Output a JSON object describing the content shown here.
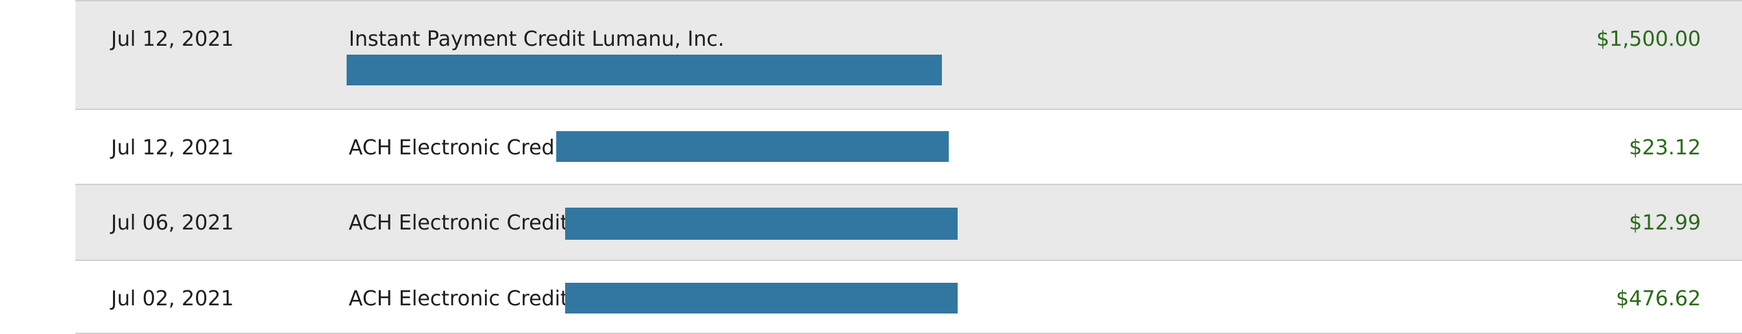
{
  "transactions": [
    {
      "date": "Jul 12, 2021",
      "description": "Instant Payment Credit Lumanu, Inc.",
      "amount": "$1,500.00"
    },
    {
      "date": "Jul 12, 2021",
      "description": "ACH Electronic Credit",
      "amount": "$23.12"
    },
    {
      "date": "Jul 06, 2021",
      "description": "ACH Electronic Credit",
      "amount": "$12.99"
    },
    {
      "date": "Jul 02, 2021",
      "description": "ACH Electronic Credit",
      "amount": "$476.62"
    }
  ]
}
